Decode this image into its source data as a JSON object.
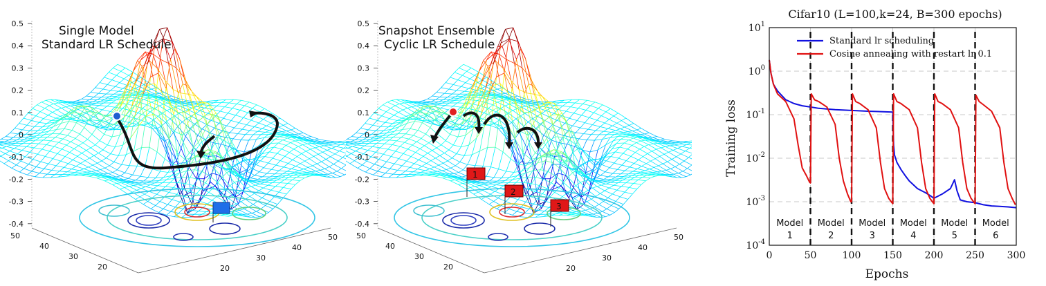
{
  "panels": {
    "left": {
      "title_line1": "Single Model",
      "title_line2": "Standard LR Schedule",
      "z_ticks": [
        "0.5",
        "0.4",
        "0.3",
        "0.2",
        "0.1",
        "0",
        "-0.1",
        "-0.2",
        "-0.3",
        "-0.4"
      ],
      "y_ticks": [
        "50",
        "40",
        "30",
        "20"
      ],
      "x_ticks": [
        "20",
        "30",
        "40",
        "50"
      ],
      "marker_color": "#1f5fd0",
      "flag_color": "#1f6fe8"
    },
    "middle": {
      "title_line1": "Snapshot Ensemble",
      "title_line2": "Cyclic LR Schedule",
      "z_ticks": [
        "0.5",
        "0.4",
        "0.3",
        "0.2",
        "0.1",
        "0",
        "-0.1",
        "-0.2",
        "-0.3",
        "-0.4"
      ],
      "y_ticks": [
        "50",
        "40",
        "30",
        "20"
      ],
      "x_ticks": [
        "20",
        "30",
        "40",
        "50"
      ],
      "marker_color": "#e02020",
      "flags": [
        "1",
        "2",
        "3"
      ],
      "flag_color": "#e01818"
    }
  },
  "chart_data": {
    "type": "line",
    "title": "Cifar10 (L=100,k=24, B=300 epochs)",
    "xlabel": "Epochs",
    "ylabel": "Training loss",
    "xlim": [
      0,
      300
    ],
    "ylim_log10": [
      -4,
      1
    ],
    "x_tick_labels": [
      "0",
      "50",
      "100",
      "150",
      "200",
      "250",
      "300"
    ],
    "y_tick_labels": [
      "10^-4",
      "10^-3",
      "10^-2",
      "10^-1",
      "10^0",
      "10^1"
    ],
    "grid": true,
    "legend_position": "top",
    "restart_epochs": [
      50,
      100,
      150,
      200,
      250
    ],
    "model_labels": [
      {
        "name": "Model",
        "num": "1",
        "x_center": 25
      },
      {
        "name": "Model",
        "num": "2",
        "x_center": 75
      },
      {
        "name": "Model",
        "num": "3",
        "x_center": 125
      },
      {
        "name": "Model",
        "num": "4",
        "x_center": 175
      },
      {
        "name": "Model",
        "num": "5",
        "x_center": 225
      },
      {
        "name": "Model",
        "num": "6",
        "x_center": 275
      }
    ],
    "series": [
      {
        "name": "Standard lr scheduling",
        "color": "#1010e0",
        "x": [
          0,
          2,
          5,
          10,
          20,
          30,
          40,
          50,
          60,
          70,
          80,
          100,
          120,
          150,
          151,
          152,
          155,
          160,
          165,
          170,
          180,
          190,
          195,
          200,
          210,
          220,
          225,
          228,
          232,
          240,
          250,
          260,
          270,
          280,
          290,
          300
        ],
        "y": [
          1.8,
          0.9,
          0.5,
          0.35,
          0.22,
          0.18,
          0.16,
          0.15,
          0.14,
          0.135,
          0.13,
          0.125,
          0.12,
          0.115,
          0.02,
          0.012,
          0.008,
          0.0055,
          0.004,
          0.003,
          0.002,
          0.0016,
          0.0014,
          0.0012,
          0.0015,
          0.002,
          0.0032,
          0.0018,
          0.0011,
          0.001,
          0.00095,
          0.00085,
          0.0008,
          0.00078,
          0.00076,
          0.00073
        ]
      },
      {
        "name": "Cosine annealing with restart lr 0.1",
        "color": "#e01010",
        "x": [
          0,
          2,
          5,
          10,
          20,
          30,
          35,
          40,
          45,
          49,
          50,
          51,
          55,
          60,
          70,
          80,
          85,
          90,
          95,
          99,
          100,
          101,
          105,
          110,
          120,
          130,
          135,
          140,
          145,
          149,
          150,
          151,
          155,
          160,
          170,
          180,
          185,
          190,
          195,
          199,
          200,
          201,
          205,
          210,
          220,
          230,
          235,
          240,
          245,
          249,
          250,
          251,
          255,
          260,
          270,
          280,
          285,
          290,
          295,
          299
        ],
        "y": [
          1.8,
          0.9,
          0.5,
          0.3,
          0.2,
          0.08,
          0.02,
          0.006,
          0.004,
          0.0028,
          0.0027,
          0.3,
          0.22,
          0.2,
          0.15,
          0.06,
          0.01,
          0.003,
          0.0015,
          0.001,
          0.001,
          0.3,
          0.2,
          0.18,
          0.13,
          0.05,
          0.008,
          0.002,
          0.0012,
          0.00095,
          0.0009,
          0.3,
          0.2,
          0.18,
          0.13,
          0.05,
          0.008,
          0.002,
          0.0012,
          0.00095,
          0.0009,
          0.3,
          0.2,
          0.18,
          0.13,
          0.05,
          0.008,
          0.002,
          0.0012,
          0.00095,
          0.0009,
          0.28,
          0.2,
          0.17,
          0.12,
          0.05,
          0.008,
          0.002,
          0.0012,
          0.00085
        ]
      }
    ]
  }
}
